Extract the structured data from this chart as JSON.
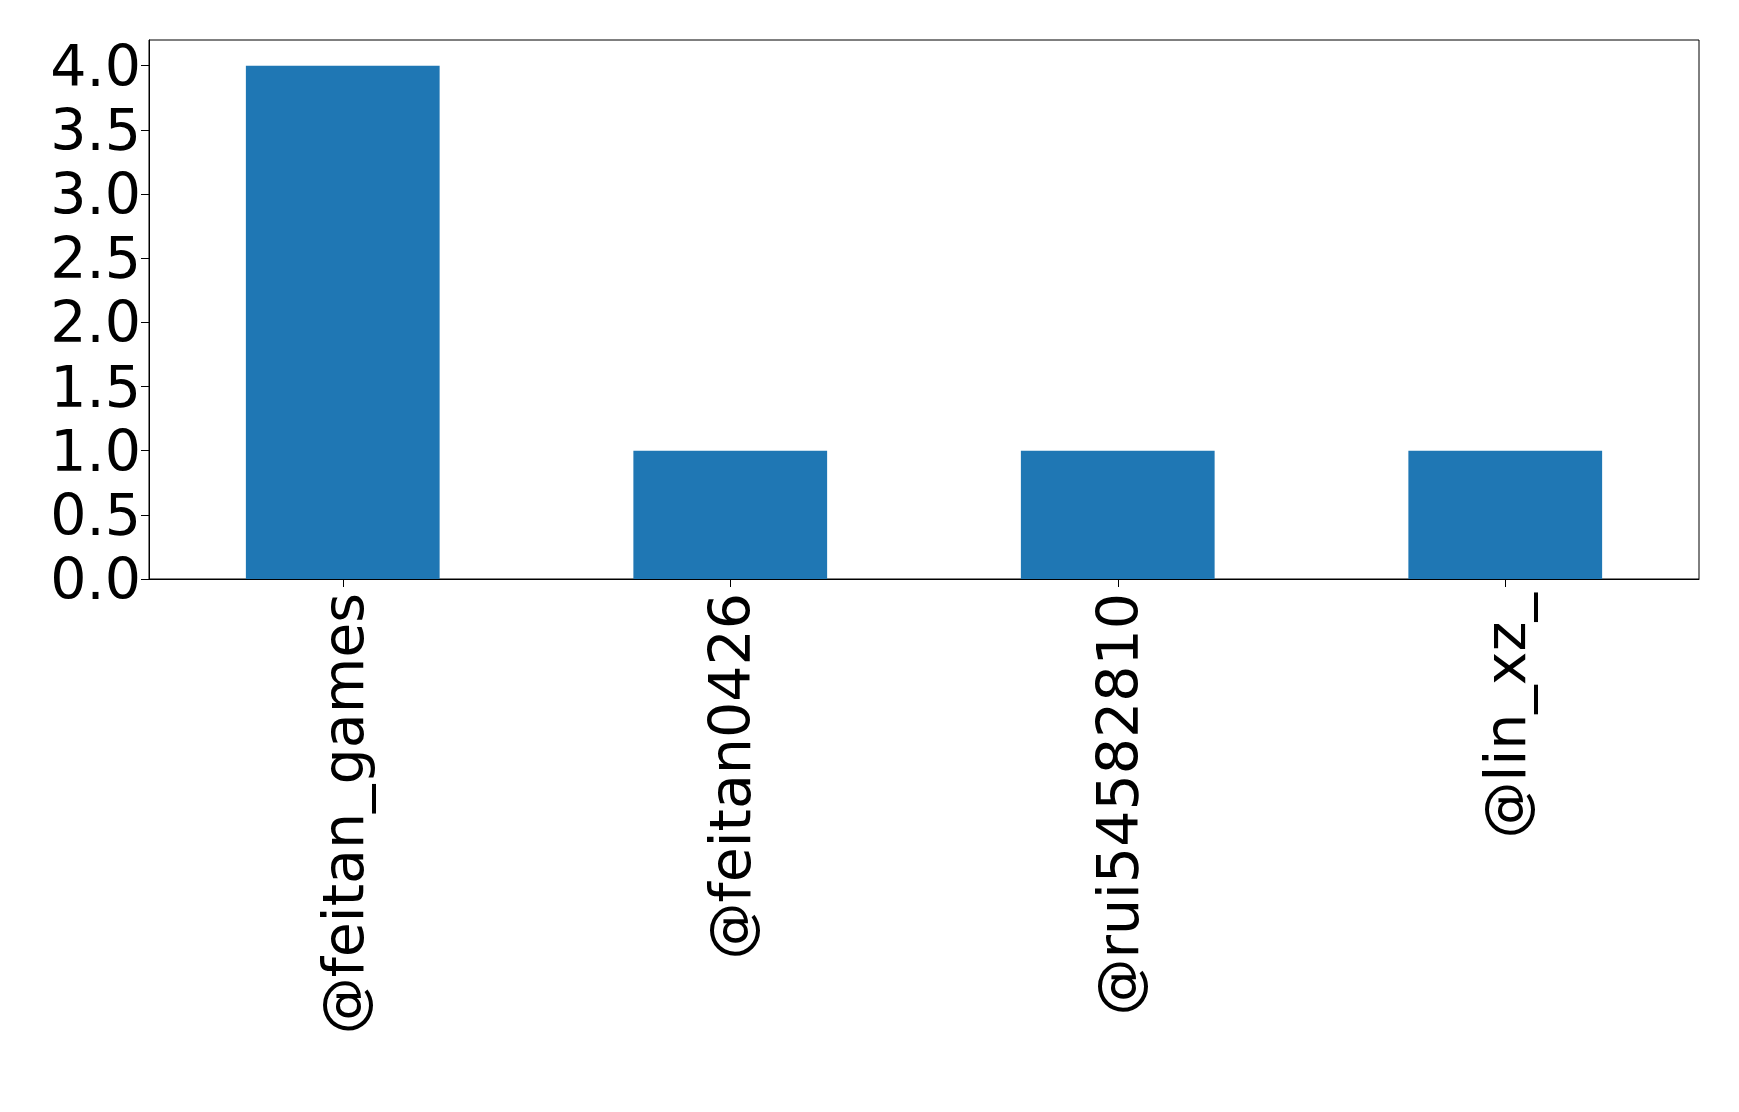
{
  "chart_data": {
    "type": "bar",
    "categories": [
      "@feitan_games",
      "@feitan0426",
      "@rui54582810",
      "@lin_xz_"
    ],
    "values": [
      4,
      1,
      1,
      1
    ],
    "color": "#1f77b4",
    "ylim": [
      0,
      4.2
    ],
    "yticks": [
      {
        "value": 0,
        "label": "0.0"
      },
      {
        "value": 0.5,
        "label": "0.5"
      },
      {
        "value": 1,
        "label": "1.0"
      },
      {
        "value": 1.5,
        "label": "1.5"
      },
      {
        "value": 2,
        "label": "2.0"
      },
      {
        "value": 2.5,
        "label": "2.5"
      },
      {
        "value": 3,
        "label": "3.0"
      },
      {
        "value": 3.5,
        "label": "3.5"
      },
      {
        "value": 4,
        "label": "4.0"
      }
    ],
    "grid": false
  }
}
